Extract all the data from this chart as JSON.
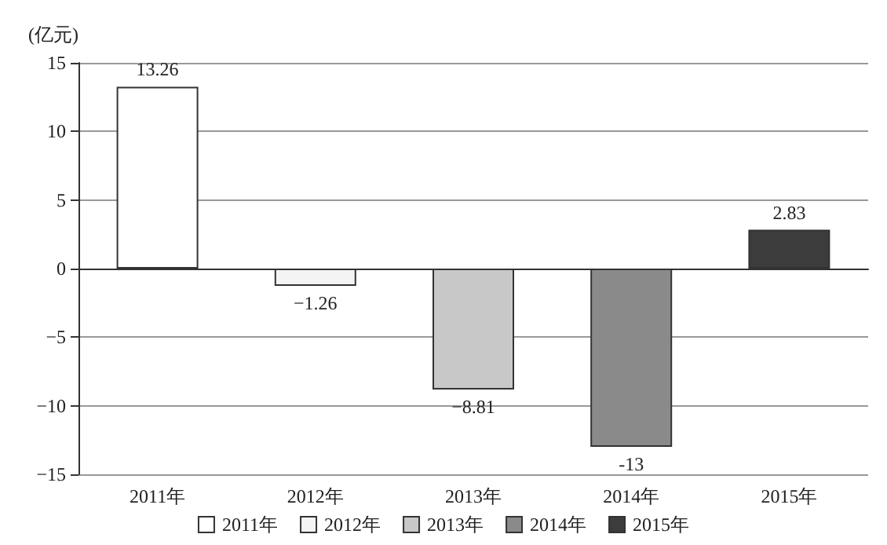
{
  "chart_data": {
    "type": "bar",
    "ylabel": "(亿元)",
    "categories": [
      "2011年",
      "2012年",
      "2013年",
      "2014年",
      "2015年"
    ],
    "series": [
      {
        "name": "2011年",
        "color": "#ffffff",
        "values": [
          13.26,
          null,
          null,
          null,
          null
        ]
      },
      {
        "name": "2012年",
        "color": "#f4f4f4",
        "values": [
          null,
          -1.26,
          null,
          null,
          null
        ]
      },
      {
        "name": "2013年",
        "color": "#c8c8c8",
        "values": [
          null,
          null,
          -8.81,
          null,
          null
        ]
      },
      {
        "name": "2014年",
        "color": "#8a8a8a",
        "values": [
          null,
          null,
          null,
          -13,
          null
        ]
      },
      {
        "name": "2015年",
        "color": "#3c3c3c",
        "values": [
          null,
          null,
          null,
          null,
          2.83
        ]
      }
    ],
    "ylim": [
      -15,
      15
    ],
    "yticks": [
      -15,
      -10,
      -5,
      0,
      5,
      10,
      15
    ],
    "grid": "y",
    "legend": "bottom",
    "data_labels": true
  }
}
